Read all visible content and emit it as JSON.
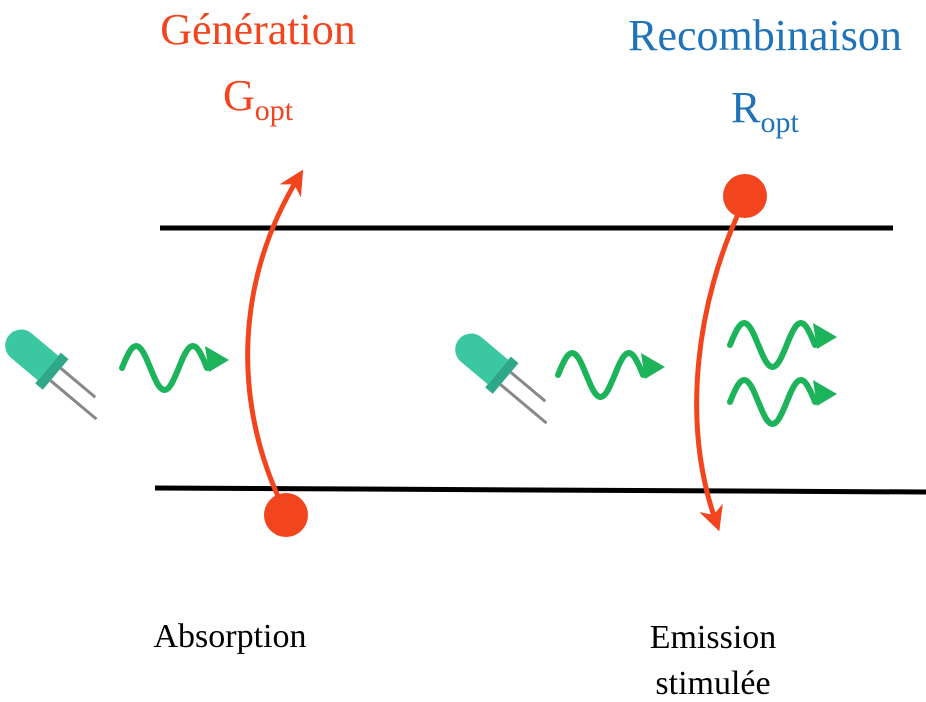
{
  "left": {
    "title": "Génération",
    "symbol": "G",
    "subscript": "opt",
    "label": "Absorption"
  },
  "right": {
    "title": "Recombinaison",
    "symbol": "R",
    "subscript": "opt",
    "label": [
      "Emission",
      "stimulée"
    ]
  }
}
